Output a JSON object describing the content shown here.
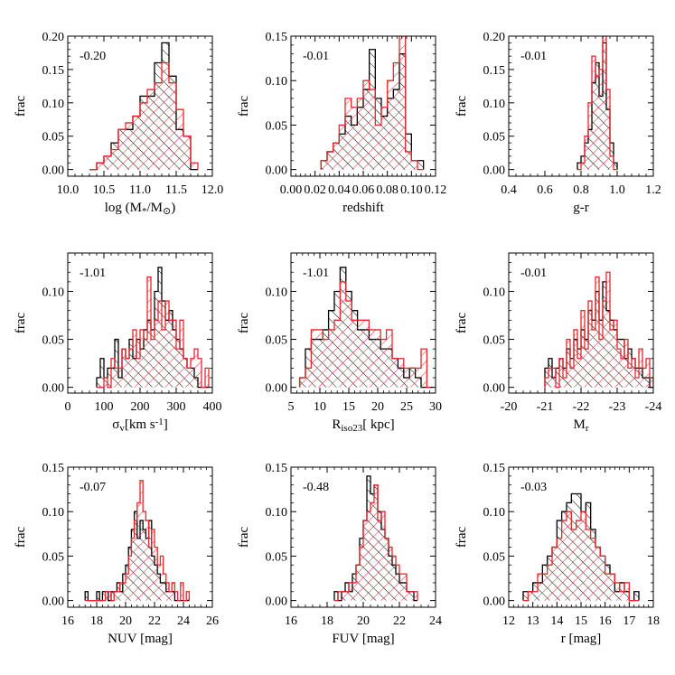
{
  "colors": {
    "black": "#000000",
    "red": "#e8262b"
  },
  "chart_data": [
    {
      "type": "bar",
      "histogram": true,
      "ylabel": "frac",
      "xlabel": "log (M*/M⊙)",
      "xlabel_parts": [
        {
          "t": "log (M"
        },
        {
          "t": "*",
          "sub": true
        },
        {
          "t": "/M"
        },
        {
          "t": "⊙",
          "sub": true
        },
        {
          "t": ")"
        }
      ],
      "annotation": "-0.20",
      "xlim": [
        10.0,
        12.0
      ],
      "ylim": [
        -0.01,
        0.2
      ],
      "xticks": [
        "10.0",
        "10.5",
        "11.0",
        "11.5",
        "12.0"
      ],
      "yticks": [
        "0.00",
        "0.05",
        "0.10",
        "0.15",
        "0.20"
      ],
      "bin_start": 10.3,
      "bin_width": 0.1,
      "series": [
        {
          "name": "",
          "color": "#000000",
          "hatch": "backslash",
          "values": [
            0.0,
            0.01,
            0.02,
            0.04,
            0.06,
            0.06,
            0.08,
            0.11,
            0.11,
            0.16,
            0.19,
            0.14,
            0.06,
            0.05,
            0.0
          ]
        },
        {
          "name": "",
          "color": "#e8262b",
          "hatch": "slash",
          "values": [
            0.0,
            0.01,
            0.02,
            0.03,
            0.06,
            0.07,
            0.08,
            0.1,
            0.12,
            0.13,
            0.16,
            0.13,
            0.09,
            0.05,
            0.01
          ]
        }
      ]
    },
    {
      "type": "bar",
      "histogram": true,
      "ylabel": "frac",
      "xlabel": "redshift",
      "xlabel_parts": [
        {
          "t": "redshift"
        }
      ],
      "annotation": "-0.01",
      "xlim": [
        0.0,
        0.12
      ],
      "ylim": [
        -0.0075,
        0.15
      ],
      "xticks": [
        "0.00",
        "0.02",
        "0.04",
        "0.06",
        "0.08",
        "0.10",
        "0.12"
      ],
      "yticks": [
        "0.00",
        "0.05",
        "0.10",
        "0.15"
      ],
      "bin_start": 0.025,
      "bin_width": 0.005,
      "series": [
        {
          "name": "",
          "color": "#000000",
          "hatch": "backslash",
          "values": [
            0.01,
            0.02,
            0.03,
            0.04,
            0.06,
            0.05,
            0.07,
            0.09,
            0.135,
            0.08,
            0.06,
            0.08,
            0.09,
            0.13,
            0.04,
            0.01,
            0.01
          ]
        },
        {
          "name": "",
          "color": "#e8262b",
          "hatch": "slash",
          "values": [
            0.01,
            0.02,
            0.03,
            0.05,
            0.08,
            0.07,
            0.08,
            0.1,
            0.09,
            0.05,
            0.07,
            0.1,
            0.12,
            0.155,
            0.02,
            0.01,
            0.0
          ]
        }
      ]
    },
    {
      "type": "bar",
      "histogram": true,
      "ylabel": "frac",
      "xlabel": "g-r",
      "xlabel_parts": [
        {
          "t": "g-r"
        }
      ],
      "annotation": "-0.01",
      "xlim": [
        0.4,
        1.2
      ],
      "ylim": [
        -0.01,
        0.2
      ],
      "xticks": [
        "0.4",
        "0.6",
        "0.8",
        "1.0",
        "1.2"
      ],
      "yticks": [
        "0.00",
        "0.05",
        "0.10",
        "0.15",
        "0.20"
      ],
      "bin_start": 0.78,
      "bin_width": 0.02,
      "series": [
        {
          "name": "",
          "color": "#000000",
          "hatch": "backslash",
          "values": [
            0.01,
            0.02,
            0.04,
            0.06,
            0.13,
            0.16,
            0.11,
            0.19,
            0.09,
            0.04,
            0.01
          ]
        },
        {
          "name": "",
          "color": "#e8262b",
          "hatch": "slash",
          "values": [
            0.0,
            0.01,
            0.05,
            0.1,
            0.17,
            0.14,
            0.15,
            0.2,
            0.12,
            0.02,
            0.0
          ]
        }
      ]
    },
    {
      "type": "bar",
      "histogram": true,
      "ylabel": "frac",
      "xlabel": "σv[km s-1]",
      "xlabel_parts": [
        {
          "t": "σ"
        },
        {
          "t": "v",
          "sub": true
        },
        {
          "t": "[km s"
        },
        {
          "t": "-1",
          "sup": true
        },
        {
          "t": "]"
        }
      ],
      "annotation": "-1.01",
      "xlim": [
        0,
        400
      ],
      "ylim": [
        -0.006,
        0.14
      ],
      "xticks": [
        "0",
        "100",
        "200",
        "300",
        "400"
      ],
      "yticks": [
        "0.00",
        "0.05",
        "0.10"
      ],
      "bin_start": 80,
      "bin_width": 10,
      "series": [
        {
          "name": "",
          "color": "#000000",
          "hatch": "backslash",
          "values": [
            0.01,
            0.03,
            0.01,
            0.02,
            0.02,
            0.05,
            0.01,
            0.04,
            0.03,
            0.05,
            0.03,
            0.05,
            0.04,
            0.06,
            0.07,
            0.06,
            0.1,
            0.125,
            0.09,
            0.07,
            0.08,
            0.06,
            0.05,
            0.04,
            0.03,
            0.02,
            0.02,
            0.01,
            0.0,
            0.0,
            0.0
          ]
        },
        {
          "name": "",
          "color": "#e8262b",
          "hatch": "slash",
          "values": [
            0.0,
            0.0,
            0.01,
            0.0,
            0.03,
            0.02,
            0.02,
            0.04,
            0.03,
            0.04,
            0.06,
            0.03,
            0.06,
            0.05,
            0.115,
            0.05,
            0.07,
            0.09,
            0.06,
            0.09,
            0.07,
            0.07,
            0.04,
            0.07,
            0.03,
            0.02,
            0.03,
            0.04,
            0.03,
            0.0,
            0.02
          ]
        }
      ]
    },
    {
      "type": "bar",
      "histogram": true,
      "ylabel": "frac",
      "xlabel": "Riso23[ kpc]",
      "xlabel_parts": [
        {
          "t": "R"
        },
        {
          "t": "iso23",
          "sub": true
        },
        {
          "t": "[ kpc]"
        }
      ],
      "annotation": "-1.01",
      "xlim": [
        5,
        30
      ],
      "ylim": [
        -0.006,
        0.14
      ],
      "xticks": [
        "5",
        "10",
        "15",
        "20",
        "25",
        "30"
      ],
      "yticks": [
        "0.00",
        "0.05",
        "0.10"
      ],
      "bin_start": 6.5,
      "bin_width": 1.0,
      "series": [
        {
          "name": "",
          "color": "#000000",
          "hatch": "backslash",
          "values": [
            0.01,
            0.04,
            0.05,
            0.05,
            0.06,
            0.08,
            0.1,
            0.125,
            0.1,
            0.08,
            0.06,
            0.06,
            0.05,
            0.05,
            0.04,
            0.04,
            0.03,
            0.02,
            0.01,
            0.02,
            0.01,
            0.0,
            0.0
          ]
        },
        {
          "name": "",
          "color": "#e8262b",
          "hatch": "slash",
          "values": [
            0.01,
            0.02,
            0.06,
            0.06,
            0.05,
            0.06,
            0.07,
            0.11,
            0.09,
            0.07,
            0.07,
            0.07,
            0.06,
            0.06,
            0.05,
            0.06,
            0.03,
            0.03,
            0.02,
            0.02,
            0.02,
            0.04,
            0.0
          ]
        }
      ]
    },
    {
      "type": "bar",
      "histogram": true,
      "ylabel": "frac",
      "xlabel": "Mr",
      "xlabel_parts": [
        {
          "t": "M"
        },
        {
          "t": "r",
          "sub": true
        }
      ],
      "annotation": "-0.01",
      "xlim": [
        -20,
        -24
      ],
      "ylim": [
        -0.006,
        0.14
      ],
      "xticks": [
        "-20",
        "-21",
        "-22",
        "-23",
        "-24"
      ],
      "yticks": [
        "0.00",
        "0.05",
        "0.10"
      ],
      "bin_start": -21.0,
      "bin_width": -0.1,
      "series": [
        {
          "name": "",
          "color": "#000000",
          "hatch": "backslash",
          "values": [
            0.02,
            0.03,
            0.01,
            0.02,
            0.03,
            0.02,
            0.04,
            0.03,
            0.05,
            0.04,
            0.06,
            0.05,
            0.08,
            0.07,
            0.1,
            0.07,
            0.11,
            0.08,
            0.07,
            0.06,
            0.05,
            0.05,
            0.03,
            0.04,
            0.03,
            0.02,
            0.02,
            0.01,
            0.01,
            0.0
          ]
        },
        {
          "name": "",
          "color": "#e8262b",
          "hatch": "slash",
          "values": [
            0.01,
            0.02,
            0.02,
            0.0,
            0.03,
            0.01,
            0.05,
            0.02,
            0.06,
            0.03,
            0.08,
            0.04,
            0.09,
            0.06,
            0.115,
            0.05,
            0.09,
            0.12,
            0.06,
            0.07,
            0.04,
            0.03,
            0.05,
            0.02,
            0.03,
            0.01,
            0.04,
            0.02,
            0.03,
            0.01
          ]
        }
      ]
    },
    {
      "type": "bar",
      "histogram": true,
      "ylabel": "frac",
      "xlabel": "NUV [mag]",
      "xlabel_parts": [
        {
          "t": "NUV [mag]"
        }
      ],
      "annotation": "-0.07",
      "xlim": [
        16,
        26
      ],
      "ylim": [
        -0.0075,
        0.15
      ],
      "xticks": [
        "16",
        "18",
        "20",
        "22",
        "24",
        "26"
      ],
      "yticks": [
        "0.00",
        "0.05",
        "0.10",
        "0.15"
      ],
      "bin_start": 17.2,
      "bin_width": 0.2,
      "series": [
        {
          "name": "",
          "color": "#000000",
          "hatch": "backslash",
          "values": [
            0.01,
            0.0,
            0.0,
            0.0,
            0.01,
            0.0,
            0.01,
            0.01,
            0.0,
            0.01,
            0.01,
            0.02,
            0.01,
            0.03,
            0.04,
            0.06,
            0.08,
            0.1,
            0.07,
            0.09,
            0.08,
            0.07,
            0.09,
            0.05,
            0.04,
            0.03,
            0.02,
            0.02,
            0.01,
            0.01,
            0.01,
            0.0,
            0.0,
            0.0,
            0.0,
            0.0
          ]
        },
        {
          "name": "",
          "color": "#e8262b",
          "hatch": "slash",
          "values": [
            0.0,
            0.0,
            0.0,
            0.0,
            0.0,
            0.0,
            0.0,
            0.01,
            0.01,
            0.0,
            0.01,
            0.01,
            0.02,
            0.02,
            0.03,
            0.05,
            0.07,
            0.09,
            0.11,
            0.135,
            0.1,
            0.09,
            0.06,
            0.08,
            0.06,
            0.04,
            0.05,
            0.03,
            0.02,
            0.01,
            0.02,
            0.01,
            0.0,
            0.02,
            0.0,
            0.01
          ]
        }
      ]
    },
    {
      "type": "bar",
      "histogram": true,
      "ylabel": "frac",
      "xlabel": "FUV [mag]",
      "xlabel_parts": [
        {
          "t": "FUV [mag]"
        }
      ],
      "annotation": "-0.48",
      "xlim": [
        16,
        24
      ],
      "ylim": [
        -0.0075,
        0.15
      ],
      "xticks": [
        "16",
        "18",
        "20",
        "22",
        "24"
      ],
      "yticks": [
        "0.00",
        "0.05",
        "0.10",
        "0.15"
      ],
      "bin_start": 18.4,
      "bin_width": 0.2,
      "series": [
        {
          "name": "",
          "color": "#000000",
          "hatch": "backslash",
          "values": [
            0.01,
            0.0,
            0.01,
            0.02,
            0.01,
            0.03,
            0.04,
            0.07,
            0.09,
            0.14,
            0.12,
            0.13,
            0.1,
            0.08,
            0.07,
            0.05,
            0.04,
            0.03,
            0.02,
            0.02,
            0.01,
            0.01,
            0.0
          ]
        },
        {
          "name": "",
          "color": "#e8262b",
          "hatch": "slash",
          "values": [
            0.0,
            0.01,
            0.01,
            0.01,
            0.02,
            0.02,
            0.04,
            0.06,
            0.09,
            0.1,
            0.11,
            0.13,
            0.09,
            0.1,
            0.07,
            0.06,
            0.05,
            0.04,
            0.03,
            0.03,
            0.01,
            0.01,
            0.01
          ]
        }
      ]
    },
    {
      "type": "bar",
      "histogram": true,
      "ylabel": "frac",
      "xlabel": "r [mag]",
      "xlabel_parts": [
        {
          "t": "r [mag]"
        }
      ],
      "annotation": "-0.03",
      "xlim": [
        12,
        18
      ],
      "ylim": [
        -0.0075,
        0.15
      ],
      "xticks": [
        "12",
        "13",
        "14",
        "15",
        "16",
        "17",
        "18"
      ],
      "yticks": [
        "0.00",
        "0.05",
        "0.10",
        "0.15"
      ],
      "bin_start": 12.6,
      "bin_width": 0.2,
      "series": [
        {
          "name": "",
          "color": "#000000",
          "hatch": "backslash",
          "values": [
            0.01,
            0.01,
            0.02,
            0.02,
            0.04,
            0.05,
            0.06,
            0.09,
            0.1,
            0.11,
            0.12,
            0.12,
            0.1,
            0.11,
            0.08,
            0.06,
            0.05,
            0.04,
            0.03,
            0.01,
            0.02,
            0.01,
            0.0,
            0.01
          ]
        },
        {
          "name": "",
          "color": "#e8262b",
          "hatch": "slash",
          "values": [
            0.0,
            0.01,
            0.01,
            0.03,
            0.03,
            0.04,
            0.06,
            0.07,
            0.09,
            0.1,
            0.08,
            0.09,
            0.1,
            0.08,
            0.07,
            0.06,
            0.05,
            0.03,
            0.03,
            0.02,
            0.01,
            0.02,
            0.0,
            0.0
          ]
        }
      ]
    }
  ]
}
